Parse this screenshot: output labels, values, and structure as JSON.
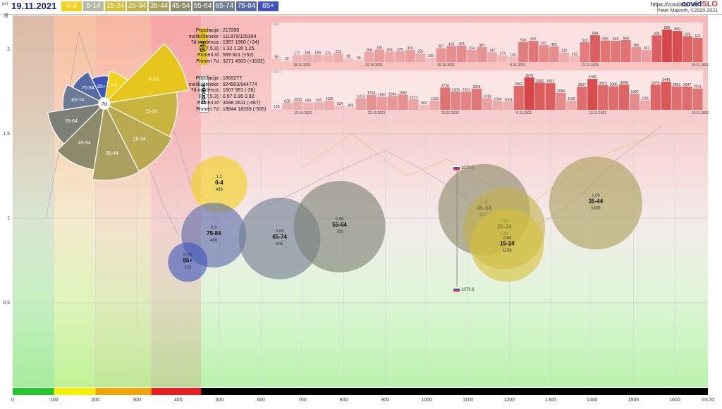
{
  "header": {
    "day": "pet",
    "date": "19.11.2021",
    "site": "https://covidslo.net",
    "brand_main": "covid",
    "brand_accent": "SLO",
    "author": "Peter Malovrh, ©2020-2021",
    "y_axis_label": "R"
  },
  "age_groups": [
    {
      "label": "0-4",
      "color": "#f2d21b"
    },
    {
      "label": "5-14",
      "color": "#b8b8a8"
    },
    {
      "label": "15-24",
      "color": "#d6c13a"
    },
    {
      "label": "25-34",
      "color": "#c2b24a"
    },
    {
      "label": "35-44",
      "color": "#a9a05c"
    },
    {
      "label": "45-54",
      "color": "#8c8b6a"
    },
    {
      "label": "55-64",
      "color": "#7d8175"
    },
    {
      "label": "65-74",
      "color": "#6f7d92"
    },
    {
      "label": "75-84",
      "color": "#5a6aa8"
    },
    {
      "label": "85+",
      "color": "#3f55bd"
    }
  ],
  "pie": {
    "center_label": "7d",
    "slices": [
      {
        "label": "0-4",
        "r": 0.33,
        "color": "#f2d21b"
      },
      {
        "label": "5-14",
        "r": 0.86,
        "color": "#e6c61c"
      },
      {
        "label": "15-24",
        "r": 0.74,
        "color": "#c7b33e"
      },
      {
        "label": "25-34",
        "r": 0.77,
        "color": "#b9aa52"
      },
      {
        "label": "35-44",
        "r": 0.78,
        "color": "#a99f5e"
      },
      {
        "label": "45-54",
        "r": 0.68,
        "color": "#8c8a6a"
      },
      {
        "label": "55-64",
        "r": 0.58,
        "color": "#7b7f76"
      },
      {
        "label": "65-74",
        "r": 0.42,
        "color": "#6c7b94"
      },
      {
        "label": "75-84",
        "r": 0.36,
        "color": "#566ba6"
      },
      {
        "label": "85+",
        "r": 0.28,
        "color": "#3f55bd"
      }
    ]
  },
  "panel_514": {
    "tag": "5-14",
    "tag_color": "#e6c61c",
    "rows": [
      {
        "k": "Populacija",
        "v": "217269"
      },
      {
        "k": "moški/ženske",
        "v": "111875/105394"
      },
      {
        "k": "7d incidenca",
        "v": "1957 1980 (+24)"
      },
      {
        "k": "R (7,5,3)",
        "v": "1.32 1.26 1.25"
      },
      {
        "k": "Primeri Id",
        "v": "569 621 (+52)"
      },
      {
        "k": "Primeri 7d",
        "v": "3271 4303 (+1032)"
      }
    ],
    "ymax_label": "839",
    "values": [
      85,
      32,
      177,
      196,
      189,
      171,
      222,
      98,
      56,
      258,
      320,
      264,
      275,
      310,
      226,
      105,
      357,
      410,
      424,
      314,
      387,
      247,
      174,
      133,
      516,
      547,
      437,
      402,
      242,
      152,
      510,
      694,
      555,
      549,
      569,
      385,
      307,
      688,
      839,
      800,
      669,
      621
    ],
    "dates": [
      "15.10.2021",
      "22.10.2021",
      "29.10.2021",
      "5.11.2021",
      "12.11.2021",
      "19.11.2021"
    ]
  },
  "panel_all": {
    "tag": "Izbrano",
    "tag_color": "#ffffff",
    "rows": [
      {
        "k": "Populacija",
        "v": "1869277"
      },
      {
        "k": "moški/ženske",
        "v": "924503/944774"
      },
      {
        "k": "7d incidenca",
        "v": "1007 981 (-26)"
      },
      {
        "k": "R (7,5,3)",
        "v": "0.97 0.95 0.92"
      },
      {
        "k": "Primeri Id",
        "v": "3098 2611 (-487)"
      },
      {
        "k": "Primeri 7d",
        "v": "18844 18339 (-505)"
      }
    ],
    "ymax_label": "3970",
    "values": [
      156,
      828,
      1033,
      893,
      933,
      1126,
      534,
      308,
      1413,
      1834,
      1587,
      1694,
      1862,
      1272,
      603,
      1139,
      2728,
      2208,
      2201,
      2604,
      1418,
      1084,
      1003,
      2942,
      3970,
      3342,
      3262,
      2083,
      1136,
      2837,
      3789,
      3015,
      2886,
      3098,
      1980,
      1151,
      3078,
      3449,
      2863,
      2847,
      2611
    ],
    "dates": [
      "15.10.2021",
      "22.10.2021",
      "29.10.2021",
      "5.11.2021",
      "12.11.2021",
      "19.11.2021"
    ]
  },
  "chart_data": {
    "type": "scatter",
    "xlabel": "Inc7d",
    "ylabel": "R",
    "xlim": [
      0,
      1680
    ],
    "ylim": [
      0,
      2.2
    ],
    "x_ticks": [
      0,
      100,
      200,
      300,
      400,
      500,
      600,
      700,
      800,
      900,
      1000,
      1100,
      1200,
      1300,
      1400,
      1500,
      1600
    ],
    "y_ticks": [
      0.5,
      1,
      1.5,
      2
    ],
    "y_tick_labels": [
      "0,5",
      "1",
      "1,5",
      "2"
    ],
    "incidence_bands": [
      {
        "from": 0,
        "to": 100,
        "color": "#22c82c"
      },
      {
        "from": 100,
        "to": 200,
        "color": "#f5f200"
      },
      {
        "from": 200,
        "to": 335,
        "color": "#f5a300"
      },
      {
        "from": 335,
        "to": 455,
        "color": "#ee1c1c"
      },
      {
        "from": 455,
        "to": 1680,
        "color": "#000000"
      }
    ],
    "points": [
      {
        "group": "0-4",
        "r": 1.2,
        "inc": 499,
        "x": 499,
        "y": 1.2,
        "size": 40,
        "color": "#f2d21b"
      },
      {
        "group": "75-84",
        "r": 0.9,
        "inc": 486,
        "x": 486,
        "y": 0.9,
        "size": 46,
        "color": "#5a6aa8"
      },
      {
        "group": "85+",
        "r": 0.74,
        "inc": 423,
        "x": 423,
        "y": 0.74,
        "size": 28,
        "color": "#3f55bd"
      },
      {
        "group": "65-74",
        "r": 0.88,
        "inc": 645,
        "x": 645,
        "y": 0.88,
        "size": 58,
        "color": "#6f7d92"
      },
      {
        "group": "55-64",
        "r": 0.95,
        "inc": 790,
        "x": 790,
        "y": 0.95,
        "size": 65,
        "color": "#7d8175"
      },
      {
        "group": "45-54",
        "r": 1.05,
        "inc": 1139,
        "x": 1139,
        "y": 1.05,
        "size": 65,
        "color": "#8c8b6a"
      },
      {
        "group": "25-34",
        "r": 0.94,
        "inc": 1188,
        "x": 1188,
        "y": 0.94,
        "size": 58,
        "color": "#c2b24a"
      },
      {
        "group": "15-24",
        "r": 0.84,
        "inc": 1195,
        "x": 1195,
        "y": 0.84,
        "size": 52,
        "color": "#d6c13a"
      },
      {
        "group": "35-44",
        "r": 1.09,
        "inc": 1409,
        "x": 1409,
        "y": 1.09,
        "size": 66,
        "color": "#a9a05c"
      }
    ],
    "country_markers": [
      {
        "label": "1073.6",
        "x": 1073.6,
        "y": 1.3
      },
      {
        "label": "1073.6",
        "x": 1073.6,
        "y": 0.58
      }
    ]
  }
}
